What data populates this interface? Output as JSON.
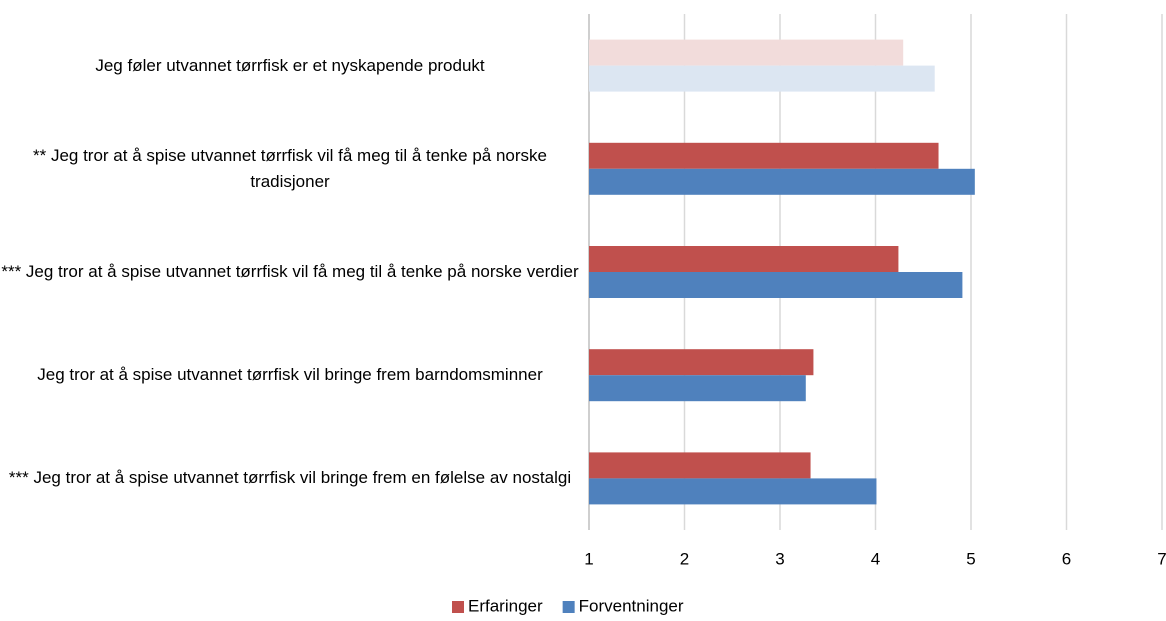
{
  "chart_data": {
    "type": "bar",
    "orientation": "horizontal",
    "categories": [
      "Jeg føler utvannet tørrfisk er et nyskapende produkt",
      "** Jeg tror at å spise utvannet tørrfisk vil få meg til å tenke på norske tradisjoner",
      "*** Jeg tror at å spise utvannet tørrfisk vil få meg til å tenke på norske verdier",
      "Jeg tror at å spise utvannet tørrfisk vil bringe frem barndomsminner",
      "*** Jeg tror at å spise utvannet tørrfisk vil bringe frem en følelse av nostalgi"
    ],
    "series": [
      {
        "name": "Erfaringer",
        "color": "#c0504d",
        "colors": [
          "#f2dcdb",
          "#c0504d",
          "#c0504d",
          "#c0504d",
          "#c0504d"
        ],
        "values": [
          4.29,
          4.66,
          4.24,
          3.35,
          3.32
        ]
      },
      {
        "name": "Forventninger",
        "color": "#4f81bd",
        "colors": [
          "#dce6f2",
          "#4f81bd",
          "#4f81bd",
          "#4f81bd",
          "#4f81bd"
        ],
        "values": [
          4.62,
          5.04,
          4.91,
          3.27,
          4.01
        ]
      }
    ],
    "xlim": [
      1,
      7
    ],
    "xticks": [
      1,
      2,
      3,
      4,
      5,
      6,
      7
    ],
    "grid": true,
    "legend": "bottom"
  }
}
